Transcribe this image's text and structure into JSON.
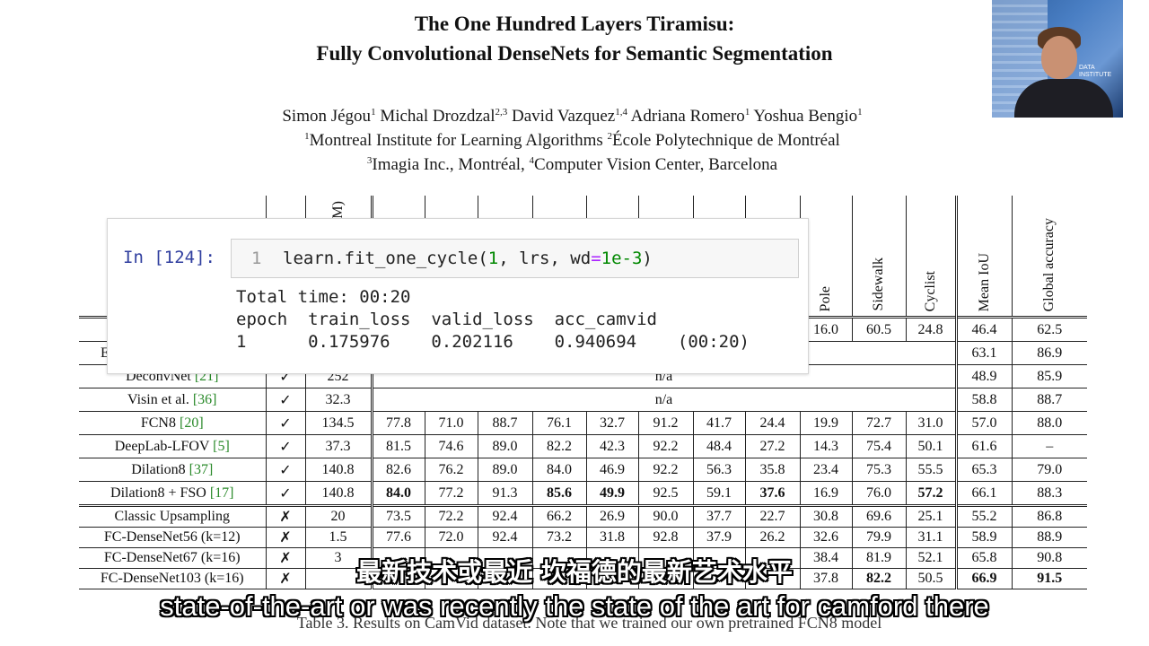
{
  "paper": {
    "title_line1": "The One Hundred Layers Tiramisu:",
    "title_line2": "Fully Convolutional DenseNets for Semantic Segmentation",
    "authors": [
      {
        "name": "Simon Jégou",
        "aff": "1"
      },
      {
        "name": "Michal Drozdzal",
        "aff": "2,3"
      },
      {
        "name": "David Vazquez",
        "aff": "1,4"
      },
      {
        "name": "Adriana Romero",
        "aff": "1"
      },
      {
        "name": "Yoshua Bengio",
        "aff": "1"
      }
    ],
    "affil_line1": {
      "s1": "1",
      "t1": "Montreal Institute for Learning Algorithms ",
      "s2": "2",
      "t2": "École Polytechnique de Montréal"
    },
    "affil_line2": {
      "s1": "3",
      "t1": "Imagia Inc., Montréal, ",
      "s2": "4",
      "t2": "Computer Vision Center, Barcelona"
    },
    "caption": "Table 3. Results on CamVid dataset. Note that we trained our own pretrained FCN8 model"
  },
  "table": {
    "header_partial": "(M)",
    "columns_right": [
      "Pole",
      "Sidewalk",
      "Cyclist",
      "Mean IoU",
      "Global accuracy"
    ],
    "row_partial": {
      "pole": "16.0",
      "sidewalk": "60.5",
      "cyclist": "24.8",
      "miou": "46.4",
      "gacc": "62.5"
    },
    "row_partial2": {
      "name": "E",
      "miou": "63.1",
      "gacc": "86.9"
    },
    "rows_na": [
      {
        "name": "DeconvNet ",
        "cite": "[21]",
        "pre": "✓",
        "params": "252",
        "na": "n/a",
        "miou": "48.9",
        "gacc": "85.9"
      },
      {
        "name": "Visin et al. ",
        "cite": "[36]",
        "pre": "✓",
        "params": "32.3",
        "na": "n/a",
        "miou": "58.8",
        "gacc": "88.7"
      }
    ],
    "rows_full": [
      {
        "name": "FCN8 ",
        "cite": "[20]",
        "pre": "✓",
        "params": "134.5",
        "v": [
          "77.8",
          "71.0",
          "88.7",
          "76.1",
          "32.7",
          "91.2",
          "41.7",
          "24.4",
          "19.9",
          "72.7",
          "31.0"
        ],
        "miou": "57.0",
        "gacc": "88.0"
      },
      {
        "name": "DeepLab-LFOV ",
        "cite": "[5]",
        "pre": "✓",
        "params": "37.3",
        "v": [
          "81.5",
          "74.6",
          "89.0",
          "82.2",
          "42.3",
          "92.2",
          "48.4",
          "27.2",
          "14.3",
          "75.4",
          "50.1"
        ],
        "miou": "61.6",
        "gacc": "–"
      },
      {
        "name": "Dilation8 ",
        "cite": "[37]",
        "pre": "✓",
        "params": "140.8",
        "v": [
          "82.6",
          "76.2",
          "89.0",
          "84.0",
          "46.9",
          "92.2",
          "56.3",
          "35.8",
          "23.4",
          "75.3",
          "55.5"
        ],
        "miou": "65.3",
        "gacc": "79.0"
      },
      {
        "name": "Dilation8 + FSO ",
        "cite": "[17]",
        "pre": "✓",
        "params": "140.8",
        "v": [
          "84.0",
          "77.2",
          "91.3",
          "85.6",
          "49.9",
          "92.5",
          "59.1",
          "37.6",
          "16.9",
          "76.0",
          "57.2"
        ],
        "miou": "66.1",
        "gacc": "88.3"
      }
    ],
    "rows_ours": [
      {
        "name": "Classic Upsampling",
        "pre": "✗",
        "params": "20",
        "v": [
          "73.5",
          "72.2",
          "92.4",
          "66.2",
          "26.9",
          "90.0",
          "37.7",
          "22.7",
          "30.8",
          "69.6",
          "25.1"
        ],
        "miou": "55.2",
        "gacc": "86.8"
      },
      {
        "name": "FC-DenseNet56 (k=12)",
        "pre": "✗",
        "params": "1.5",
        "v": [
          "77.6",
          "72.0",
          "92.4",
          "73.2",
          "31.8",
          "92.8",
          "37.9",
          "26.2",
          "32.6",
          "79.9",
          "31.1"
        ],
        "miou": "58.9",
        "gacc": "88.9"
      },
      {
        "name": "FC-DenseNet67 (k=16)",
        "pre": "✗",
        "params": "3",
        "v": [
          "",
          "",
          "",
          "",
          "",
          "",
          "",
          "",
          "38.4",
          "81.9",
          "52.1"
        ],
        "miou": "65.8",
        "gacc": "90.8"
      },
      {
        "name": "FC-DenseNet103 (k=16)",
        "pre": "✗",
        "params": "",
        "v": [
          "",
          "",
          "",
          "",
          "",
          "",
          "",
          "",
          "37.8",
          "82.2",
          "50.5"
        ],
        "miou": "66.9",
        "gacc": "91.5"
      }
    ]
  },
  "notebook": {
    "prompt": "In [124]:",
    "line_no": "1",
    "code_pre": "learn.fit_one_cycle(",
    "code_n1": "1",
    "code_mid": ", lrs, wd",
    "code_eq": "=",
    "code_n2": "1e-3",
    "code_post": ")",
    "output_time": "Total time: 00:20",
    "output_header": "epoch  train_loss  valid_loss  acc_camvid",
    "output_row": "1      0.175976    0.202116    0.940694    (00:20)"
  },
  "webcam": {
    "sign": "DATA\nINSTITUTE"
  },
  "subtitles": {
    "zh": "最新技术或最近 坎福德的最新艺术水平",
    "en": "state-of-the-art or was recently the state of the art for camford there"
  }
}
